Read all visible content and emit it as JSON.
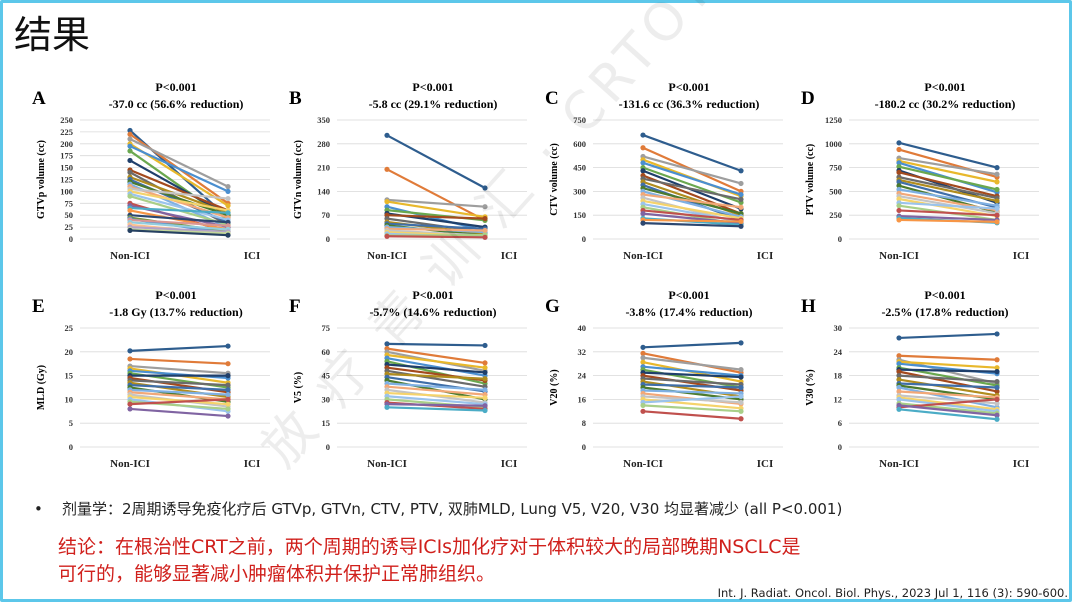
{
  "slide": {
    "title": "结果",
    "bullet_marker": "•",
    "bullet": "剂量学：2周期诱导免疫化疗后 GTVp, GTVn, CTV, PTV, 双肺MLD, Lung V5, V20, V30 均显著减少 (all P<0.001)",
    "conclusion_line1": "结论：在根治性CRT之前，两个周期的诱导ICIs加化疗对于体积较大的局部晚期NSCLC是",
    "conclusion_line2": "可行的，能够显著减小肿瘤体积并保护正常肺组织。",
    "citation": "Int. J. Radiat. Oncol. Biol. Phys., 2023 Jul 1, 116 (3): 590-600.",
    "watermark": "放 疗 青 训 汇 · CRTOYOUNG@163.COM",
    "colors": {
      "frame": "#5cc7ea",
      "conclusion": "#d0201c",
      "grid": "#d9d9d9"
    }
  },
  "chart_data": [
    {
      "type": "line",
      "panel": "A",
      "p": "P<0.001",
      "change": "-37.0 cc (56.6% reduction)",
      "ylabel": "GTVp volume (cc)",
      "categories": [
        "Non-ICI",
        "ICI"
      ],
      "ylim": [
        0,
        250
      ],
      "yticks": [
        0,
        25,
        50,
        75,
        100,
        125,
        150,
        175,
        200,
        225,
        250
      ],
      "series": [
        [
          228,
          45
        ],
        [
          220,
          75
        ],
        [
          210,
          110
        ],
        [
          200,
          70
        ],
        [
          195,
          100
        ],
        [
          185,
          40
        ],
        [
          165,
          50
        ],
        [
          145,
          60
        ],
        [
          140,
          30
        ],
        [
          130,
          55
        ],
        [
          125,
          35
        ],
        [
          120,
          50
        ],
        [
          115,
          25
        ],
        [
          110,
          45
        ],
        [
          105,
          85
        ],
        [
          100,
          60
        ],
        [
          95,
          40
        ],
        [
          90,
          30
        ],
        [
          75,
          15
        ],
        [
          70,
          25
        ],
        [
          65,
          55
        ],
        [
          60,
          20
        ],
        [
          50,
          35
        ],
        [
          45,
          15
        ],
        [
          42,
          12
        ],
        [
          40,
          28
        ],
        [
          35,
          20
        ],
        [
          30,
          10
        ],
        [
          25,
          15
        ],
        [
          20,
          12
        ],
        [
          18,
          8
        ]
      ]
    },
    {
      "type": "line",
      "panel": "B",
      "p": "P<0.001",
      "change": "-5.8 cc (29.1% reduction)",
      "ylabel": "GTVn volume (cc)",
      "categories": [
        "Non-ICI",
        "ICI"
      ],
      "ylim": [
        0,
        350
      ],
      "yticks": [
        0,
        70,
        140,
        210,
        280,
        350
      ],
      "series": [
        [
          305,
          150
        ],
        [
          205,
          55
        ],
        [
          115,
          95
        ],
        [
          110,
          65
        ],
        [
          95,
          25
        ],
        [
          85,
          55
        ],
        [
          75,
          35
        ],
        [
          70,
          60
        ],
        [
          60,
          20
        ],
        [
          50,
          15
        ],
        [
          45,
          30
        ],
        [
          40,
          10
        ],
        [
          35,
          20
        ],
        [
          30,
          25
        ],
        [
          25,
          10
        ],
        [
          20,
          8
        ],
        [
          15,
          5
        ],
        [
          10,
          12
        ],
        [
          8,
          5
        ]
      ]
    },
    {
      "type": "line",
      "panel": "C",
      "p": "P<0.001",
      "change": "-131.6 cc (36.3% reduction)",
      "ylabel": "CTV volume (cc)",
      "categories": [
        "Non-ICI",
        "ICI"
      ],
      "ylim": [
        0,
        750
      ],
      "yticks": [
        0,
        150,
        300,
        450,
        600,
        750
      ],
      "series": [
        [
          655,
          430
        ],
        [
          575,
          300
        ],
        [
          520,
          350
        ],
        [
          500,
          270
        ],
        [
          480,
          280
        ],
        [
          450,
          230
        ],
        [
          430,
          190
        ],
        [
          400,
          160
        ],
        [
          380,
          250
        ],
        [
          360,
          150
        ],
        [
          340,
          120
        ],
        [
          320,
          160
        ],
        [
          300,
          140
        ],
        [
          280,
          200
        ],
        [
          260,
          100
        ],
        [
          240,
          130
        ],
        [
          220,
          110
        ],
        [
          200,
          90
        ],
        [
          180,
          120
        ],
        [
          160,
          100
        ],
        [
          130,
          90
        ],
        [
          120,
          110
        ],
        [
          100,
          80
        ]
      ]
    },
    {
      "type": "line",
      "panel": "D",
      "p": "P<0.001",
      "change": "-180.2 cc (30.2% reduction)",
      "ylabel": "PTV volume (cc)",
      "categories": [
        "Non-ICI",
        "ICI"
      ],
      "ylim": [
        0,
        1250
      ],
      "yticks": [
        0,
        250,
        500,
        750,
        1000,
        1250
      ],
      "series": [
        [
          1010,
          750
        ],
        [
          940,
          650
        ],
        [
          850,
          680
        ],
        [
          820,
          600
        ],
        [
          800,
          490
        ],
        [
          760,
          520
        ],
        [
          720,
          380
        ],
        [
          700,
          450
        ],
        [
          650,
          430
        ],
        [
          620,
          400
        ],
        [
          600,
          330
        ],
        [
          560,
          280
        ],
        [
          520,
          350
        ],
        [
          480,
          300
        ],
        [
          450,
          270
        ],
        [
          420,
          240
        ],
        [
          380,
          320
        ],
        [
          350,
          200
        ],
        [
          300,
          250
        ],
        [
          240,
          200
        ],
        [
          220,
          170
        ],
        [
          200,
          180
        ]
      ]
    },
    {
      "type": "line",
      "panel": "E",
      "p": "P<0.001",
      "change": "-1.8 Gy (13.7% reduction)",
      "ylabel": "MLD (Gy)",
      "categories": [
        "Non-ICI",
        "ICI"
      ],
      "ylim": [
        0,
        25
      ],
      "yticks": [
        0,
        5,
        10,
        15,
        20,
        25
      ],
      "series": [
        [
          20.2,
          21.2
        ],
        [
          18.5,
          17.5
        ],
        [
          17.0,
          15.5
        ],
        [
          16.5,
          13.5
        ],
        [
          16.0,
          14.5
        ],
        [
          15.5,
          12.5
        ],
        [
          15.0,
          15.0
        ],
        [
          14.5,
          11.5
        ],
        [
          14.0,
          13.0
        ],
        [
          13.5,
          10.5
        ],
        [
          13.0,
          12.0
        ],
        [
          12.5,
          9.5
        ],
        [
          12.0,
          11.0
        ],
        [
          11.5,
          10.0
        ],
        [
          11.0,
          8.5
        ],
        [
          10.5,
          9.0
        ],
        [
          10.0,
          7.5
        ],
        [
          9.5,
          8.0
        ],
        [
          9.0,
          10.0
        ],
        [
          8.0,
          6.5
        ]
      ]
    },
    {
      "type": "line",
      "panel": "F",
      "p": "P<0.001",
      "change": "-5.7% (14.6% reduction)",
      "ylabel": "V5 (%)",
      "categories": [
        "Non-ICI",
        "ICI"
      ],
      "ylim": [
        0,
        75
      ],
      "yticks": [
        0,
        15,
        30,
        45,
        60,
        75
      ],
      "series": [
        [
          65,
          64
        ],
        [
          62,
          53
        ],
        [
          60,
          48
        ],
        [
          58,
          50
        ],
        [
          56,
          45
        ],
        [
          54,
          40
        ],
        [
          52,
          47
        ],
        [
          50,
          42
        ],
        [
          48,
          38
        ],
        [
          46,
          43
        ],
        [
          44,
          35
        ],
        [
          42,
          30
        ],
        [
          40,
          36
        ],
        [
          38,
          33
        ],
        [
          36,
          28
        ],
        [
          34,
          31
        ],
        [
          32,
          27
        ],
        [
          30,
          25
        ],
        [
          28,
          24
        ],
        [
          27,
          26
        ],
        [
          25,
          23
        ]
      ]
    },
    {
      "type": "line",
      "panel": "G",
      "p": "P<0.001",
      "change": "-3.8% (17.4% reduction)",
      "ylabel": "V20 (%)",
      "categories": [
        "Non-ICI",
        "ICI"
      ],
      "ylim": [
        0,
        40
      ],
      "yticks": [
        0,
        8,
        16,
        24,
        32,
        40
      ],
      "series": [
        [
          33.5,
          35.0
        ],
        [
          31.5,
          25.0
        ],
        [
          30.0,
          26.0
        ],
        [
          28.5,
          22.0
        ],
        [
          27.0,
          24.0
        ],
        [
          26.0,
          20.0
        ],
        [
          25.0,
          23.5
        ],
        [
          24.0,
          19.0
        ],
        [
          23.0,
          21.0
        ],
        [
          22.0,
          17.0
        ],
        [
          21.0,
          20.0
        ],
        [
          20.0,
          16.0
        ],
        [
          19.0,
          18.0
        ],
        [
          18.0,
          14.5
        ],
        [
          17.0,
          15.0
        ],
        [
          16.0,
          13.0
        ],
        [
          15.0,
          17.0
        ],
        [
          14.0,
          12.0
        ],
        [
          12.0,
          9.5
        ]
      ]
    },
    {
      "type": "line",
      "panel": "H",
      "p": "P<0.001",
      "change": "-2.5% (17.8% reduction)",
      "ylabel": "V30 (%)",
      "categories": [
        "Non-ICI",
        "ICI"
      ],
      "ylim": [
        0,
        30
      ],
      "yticks": [
        0,
        6,
        12,
        18,
        24,
        30
      ],
      "series": [
        [
          27.5,
          28.5
        ],
        [
          23.0,
          22.0
        ],
        [
          22.0,
          16.0
        ],
        [
          21.5,
          20.0
        ],
        [
          21.0,
          18.5
        ],
        [
          20.0,
          15.5
        ],
        [
          19.5,
          19.0
        ],
        [
          19.0,
          14.0
        ],
        [
          18.0,
          16.5
        ],
        [
          17.0,
          13.0
        ],
        [
          16.0,
          15.0
        ],
        [
          15.5,
          12.0
        ],
        [
          15.0,
          10.0
        ],
        [
          14.0,
          12.5
        ],
        [
          13.0,
          11.0
        ],
        [
          12.5,
          9.5
        ],
        [
          12.0,
          9.0
        ],
        [
          11.0,
          8.5
        ],
        [
          10.0,
          12.0
        ],
        [
          10.5,
          8.0
        ],
        [
          9.5,
          7.0
        ]
      ]
    }
  ],
  "palette": [
    "#2e5d8e",
    "#e07b39",
    "#9e9e9e",
    "#e8b82c",
    "#4a8fd0",
    "#6aa84f",
    "#1f3f6b",
    "#a34a1e",
    "#6b6b6b",
    "#b08c1e",
    "#3f6ea8",
    "#4b7a2e",
    "#7fb0e3",
    "#f2a878",
    "#c4c4c4",
    "#f5d36b",
    "#9ac3ec",
    "#a9cf88",
    "#c0504d",
    "#8064a2",
    "#4bacc6",
    "#f79646",
    "#2c4770",
    "#77933c",
    "#558ed5",
    "#d99694",
    "#93cddd",
    "#fac090",
    "#b3a2c7",
    "#c3d69b",
    "#254061"
  ]
}
